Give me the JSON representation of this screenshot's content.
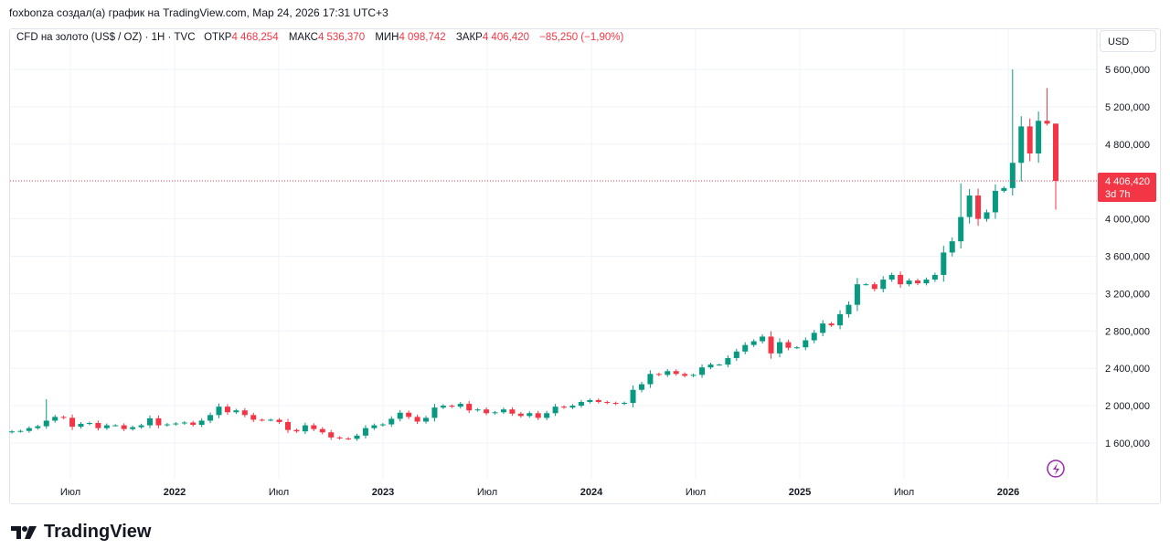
{
  "credit": "foxbonza создал(а) график на TradingView.com, Мар 24, 2026 17:31 UTC+3",
  "legend": {
    "symbol": "CFD на золото (US$ / OZ) · 1Н · TVC",
    "open_label": "ОТКР",
    "open": "4 468,254",
    "high_label": "МАКС",
    "high": "4 536,370",
    "low_label": "МИН",
    "low": "4 098,742",
    "close_label": "ЗАКР",
    "close": "4 406,420",
    "change": "−85,250 (−1,90%)"
  },
  "currency_button": "USD",
  "current_price": {
    "label": "4 406,420",
    "countdown": "3d 7h",
    "value": 4406.42
  },
  "colors": {
    "up": "#089981",
    "down": "#f23645",
    "grid": "#f0f3fa",
    "alert_icon": "#9c27b0"
  },
  "icons": {
    "alert": "lightning-icon"
  },
  "brand": "TradingView",
  "chart_data": {
    "type": "candlestick",
    "start": "2021-03",
    "end": "2026-03",
    "ylim": [
      1200,
      5900
    ],
    "grid": true,
    "y_ticks": [
      {
        "value": 1600,
        "label": "1 600,000"
      },
      {
        "value": 2000,
        "label": "2 000,000"
      },
      {
        "value": 2400,
        "label": "2 400,000"
      },
      {
        "value": 2800,
        "label": "2 800,000"
      },
      {
        "value": 3200,
        "label": "3 200,000"
      },
      {
        "value": 3600,
        "label": "3 600,000"
      },
      {
        "value": 4000,
        "label": "4 000,000"
      },
      {
        "value": 4800,
        "label": "4 800,000"
      },
      {
        "value": 5200,
        "label": "5 200,000"
      },
      {
        "value": 5600,
        "label": "5 600,000"
      }
    ],
    "x_ticks": [
      {
        "date": 2021.5,
        "label": "Июл",
        "bold": false
      },
      {
        "date": 2022.0,
        "label": "2022",
        "bold": true
      },
      {
        "date": 2022.5,
        "label": "Июл",
        "bold": false
      },
      {
        "date": 2023.0,
        "label": "2023",
        "bold": true
      },
      {
        "date": 2023.5,
        "label": "Июл",
        "bold": false
      },
      {
        "date": 2024.0,
        "label": "2024",
        "bold": true
      },
      {
        "date": 2024.5,
        "label": "Июл",
        "bold": false
      },
      {
        "date": 2025.0,
        "label": "2025",
        "bold": true
      },
      {
        "date": 2025.5,
        "label": "Июл",
        "bold": false
      },
      {
        "date": 2026.0,
        "label": "2026",
        "bold": true
      }
    ],
    "closes": [
      1725,
      1730,
      1760,
      1780,
      1840,
      1880,
      1870,
      1775,
      1805,
      1815,
      1760,
      1790,
      1790,
      1750,
      1770,
      1790,
      1865,
      1790,
      1800,
      1810,
      1820,
      1795,
      1840,
      1900,
      1990,
      1930,
      1950,
      1900,
      1850,
      1845,
      1850,
      1825,
      1740,
      1725,
      1790,
      1750,
      1715,
      1660,
      1650,
      1645,
      1680,
      1760,
      1790,
      1800,
      1860,
      1925,
      1880,
      1830,
      1870,
      1980,
      2000,
      1990,
      2020,
      1950,
      1960,
      1920,
      1930,
      1960,
      1915,
      1890,
      1920,
      1870,
      1920,
      1990,
      1980,
      2000,
      2040,
      2060,
      2040,
      2030,
      2020,
      2030,
      2170,
      2230,
      2340,
      2330,
      2370,
      2340,
      2320,
      2330,
      2410,
      2440,
      2440,
      2510,
      2580,
      2650,
      2690,
      2740,
      2560,
      2680,
      2620,
      2625,
      2700,
      2780,
      2880,
      2860,
      2980,
      3080,
      3300,
      3300,
      3250,
      3350,
      3400,
      3300,
      3340,
      3310,
      3350,
      3400,
      3640,
      3760,
      4020,
      4250,
      4000,
      4070,
      4300,
      4330,
      4600,
      4990,
      4700,
      5050,
      5020,
      4406.42
    ],
    "notable_highs": [
      {
        "date": "2022-03",
        "value": 2070
      },
      {
        "date": "2025-10",
        "value": 4380
      },
      {
        "date": "2026-01",
        "value": 5600
      },
      {
        "date": "2026-03",
        "value": 4536.37
      }
    ],
    "notable_lows": [
      {
        "date": "2026-03",
        "value": 4098.74
      }
    ]
  }
}
